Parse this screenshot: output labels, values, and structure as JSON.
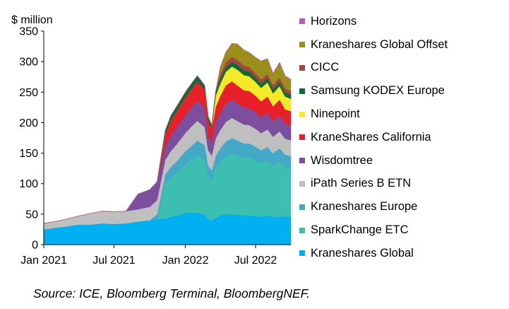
{
  "chart_data": {
    "type": "area",
    "stacked": true,
    "ylabel": "$ million",
    "ylim": [
      0,
      350
    ],
    "yticks": [
      0,
      50,
      100,
      150,
      200,
      250,
      300,
      350
    ],
    "xticks": [
      {
        "label": "Jan 2021",
        "date": "2021-01-01"
      },
      {
        "label": "Jul 2021",
        "date": "2021-07-01"
      },
      {
        "label": "Jan 2022",
        "date": "2022-01-01"
      },
      {
        "label": "Jul 2022",
        "date": "2022-07-01"
      }
    ],
    "xlim": [
      "2021-01-01",
      "2022-09-30"
    ],
    "grid": false,
    "legend_position": "right",
    "dates": [
      "2021-01-01",
      "2021-02-01",
      "2021-03-01",
      "2021-04-01",
      "2021-05-01",
      "2021-06-01",
      "2021-07-01",
      "2021-08-01",
      "2021-09-01",
      "2021-10-01",
      "2021-10-20",
      "2021-11-10",
      "2021-11-25",
      "2021-12-10",
      "2022-01-01",
      "2022-01-20",
      "2022-02-01",
      "2022-02-20",
      "2022-03-01",
      "2022-03-10",
      "2022-03-20",
      "2022-04-01",
      "2022-04-15",
      "2022-05-01",
      "2022-05-15",
      "2022-06-01",
      "2022-06-15",
      "2022-07-01",
      "2022-07-15",
      "2022-08-01",
      "2022-08-15",
      "2022-09-01",
      "2022-09-15",
      "2022-09-30"
    ],
    "series": [
      {
        "name": "Kraneshares Global",
        "color": "#00B0F0",
        "values": [
          25,
          28,
          30,
          33,
          33,
          35,
          34,
          35,
          38,
          40,
          42,
          43,
          46,
          48,
          52,
          53,
          52,
          50,
          42,
          40,
          44,
          48,
          50,
          50,
          49,
          48,
          48,
          47,
          46,
          48,
          45,
          46,
          46,
          46
        ]
      },
      {
        "name": "SparkChange ETC",
        "color": "#3CBFB0",
        "values": [
          0,
          0,
          0,
          0,
          0,
          0,
          0,
          0,
          0,
          0,
          0,
          58,
          65,
          70,
          80,
          88,
          95,
          90,
          70,
          65,
          82,
          88,
          95,
          100,
          98,
          95,
          95,
          92,
          88,
          90,
          85,
          90,
          82,
          80
        ]
      },
      {
        "name": "Kraneshares Europe",
        "color": "#44A8C8",
        "values": [
          0,
          0,
          0,
          0,
          0,
          0,
          0,
          0,
          0,
          0,
          8,
          14,
          17,
          19,
          21,
          23,
          24,
          23,
          18,
          17,
          20,
          22,
          24,
          25,
          24,
          23,
          23,
          22,
          21,
          22,
          20,
          22,
          20,
          19
        ]
      },
      {
        "name": "iPath Series B ETN",
        "color": "#BFBFBF",
        "values": [
          10,
          10,
          12,
          14,
          18,
          20,
          20,
          20,
          20,
          22,
          23,
          24,
          26,
          28,
          30,
          32,
          32,
          30,
          25,
          24,
          28,
          30,
          32,
          33,
          32,
          31,
          30,
          29,
          28,
          29,
          27,
          28,
          26,
          26
        ]
      },
      {
        "name": "Wisdomtree",
        "color": "#7C4F9E",
        "values": [
          0,
          0,
          0,
          0,
          0,
          0,
          0,
          0,
          25,
          28,
          30,
          23,
          26,
          28,
          30,
          32,
          33,
          30,
          24,
          22,
          26,
          28,
          30,
          30,
          29,
          28,
          28,
          27,
          26,
          27,
          25,
          26,
          24,
          24
        ]
      },
      {
        "name": "KraneShares California",
        "color": "#E8202A",
        "values": [
          0,
          0,
          0,
          0,
          0,
          0,
          0,
          0,
          0,
          0,
          0,
          19,
          24,
          26,
          28,
          30,
          32,
          30,
          24,
          22,
          26,
          28,
          30,
          30,
          29,
          28,
          28,
          27,
          26,
          27,
          25,
          26,
          24,
          24
        ]
      },
      {
        "name": "Ninepoint",
        "color": "#F5EA28",
        "values": [
          0,
          0,
          0,
          0,
          0,
          0,
          0,
          0,
          0,
          0,
          0,
          0,
          0,
          0,
          0,
          0,
          0,
          0,
          0,
          0,
          18,
          20,
          22,
          24,
          26,
          25,
          24,
          23,
          22,
          23,
          21,
          22,
          21,
          20
        ]
      },
      {
        "name": "Samsung KODEX Europe",
        "color": "#0C6B37",
        "values": [
          0,
          0,
          0,
          0,
          0,
          0,
          0,
          0,
          0,
          0,
          0,
          6,
          8,
          8,
          9,
          9,
          9,
          8,
          7,
          6,
          7,
          8,
          8,
          8,
          8,
          8,
          8,
          7,
          7,
          7,
          7,
          7,
          7,
          7
        ]
      },
      {
        "name": "CICC",
        "color": "#A5463F",
        "values": [
          0,
          0,
          0,
          0,
          0,
          0,
          0,
          0,
          0,
          0,
          0,
          0,
          0,
          0,
          0,
          0,
          0,
          0,
          0,
          0,
          0,
          7,
          8,
          8,
          8,
          8,
          7,
          7,
          7,
          7,
          7,
          7,
          6,
          6
        ]
      },
      {
        "name": "Kraneshares Global Offset",
        "color": "#9C8E1A",
        "values": [
          0,
          0,
          0,
          0,
          0,
          0,
          0,
          0,
          0,
          0,
          0,
          0,
          0,
          0,
          0,
          0,
          0,
          0,
          0,
          0,
          0,
          12,
          16,
          22,
          26,
          25,
          24,
          26,
          30,
          25,
          18,
          24,
          20,
          18
        ]
      },
      {
        "name": "Horizons",
        "color": "#C05AB8",
        "values": [
          0,
          0,
          0,
          0,
          0,
          0,
          0,
          0,
          0,
          0,
          0,
          0,
          0,
          0,
          0,
          0,
          0,
          0,
          0,
          0,
          0,
          0,
          0,
          0,
          0,
          0,
          0,
          0,
          0,
          0,
          1,
          1,
          1,
          1
        ]
      }
    ]
  },
  "legend_order": [
    "Horizons",
    "Kraneshares Global Offset",
    "CICC",
    "Samsung KODEX Europe",
    "Ninepoint",
    "KraneShares California",
    "Wisdomtree",
    "iPath Series B ETN",
    "Kraneshares Europe",
    "SparkChange ETC",
    "Kraneshares Global"
  ],
  "source_note": "Source: ICE,  Bloomberg Terminal, BloombergNEF."
}
